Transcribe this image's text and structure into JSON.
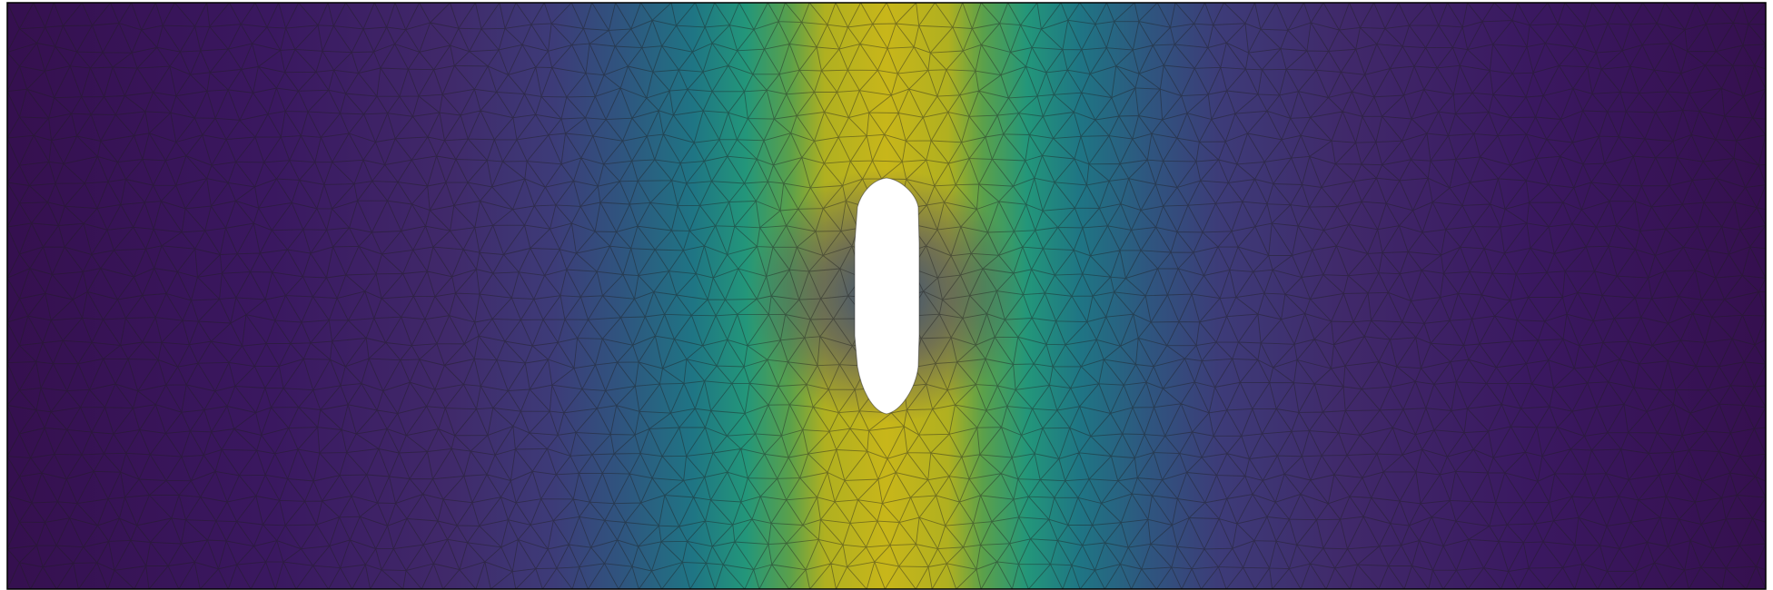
{
  "figure": {
    "kind": "finite-element mesh contour plot",
    "colormap": "viridis",
    "background_color": "#ffffff",
    "mesh_edge_color": "#222222",
    "border_color": "#000000",
    "hole_color": "#ffffff",
    "field_peak_color": "#c8b61a",
    "field_low_color": "#35104f",
    "legend": "none",
    "axes": "none"
  }
}
